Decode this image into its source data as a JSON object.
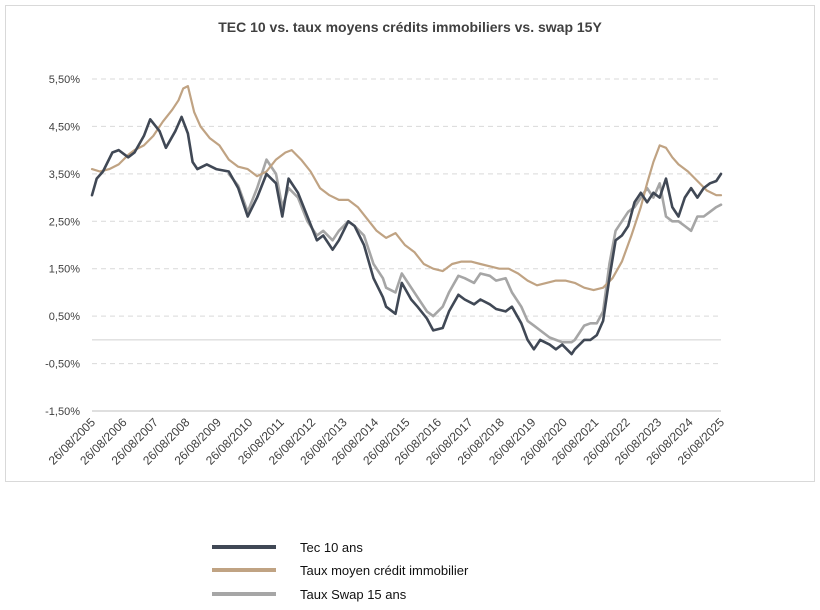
{
  "chart_data": {
    "type": "line",
    "title": "TEC 10 vs. taux moyens crédits immobiliers vs. swap 15Y",
    "xlabel": "",
    "ylabel": "",
    "ylim": [
      -1.5,
      5.5
    ],
    "yticks": [
      "5,50%",
      "4,50%",
      "3,50%",
      "2,50%",
      "1,50%",
      "0,50%",
      "-0,50%",
      "-1,50%"
    ],
    "ytick_values": [
      5.5,
      4.5,
      3.5,
      2.5,
      1.5,
      0.5,
      -0.5,
      -1.5
    ],
    "xlim": [
      2005.65,
      2025.65
    ],
    "xticks": [
      "26/08/2005",
      "26/08/2006",
      "26/08/2007",
      "26/08/2008",
      "26/08/2009",
      "26/08/2010",
      "26/08/2011",
      "26/08/2012",
      "26/08/2013",
      "26/08/2014",
      "26/08/2015",
      "26/08/2016",
      "26/08/2017",
      "26/08/2018",
      "26/08/2019",
      "26/08/2020",
      "26/08/2021",
      "26/08/2022",
      "26/08/2023",
      "26/08/2024",
      "26/08/2025"
    ],
    "grid": true,
    "legend_position": "bottom",
    "series": [
      {
        "name": "Tec 10 ans",
        "color": "#404855",
        "x": [
          2005.65,
          2005.8,
          2006.0,
          2006.3,
          2006.5,
          2006.8,
          2007.0,
          2007.3,
          2007.5,
          2007.8,
          2008.0,
          2008.3,
          2008.5,
          2008.7,
          2008.85,
          2009.0,
          2009.3,
          2009.6,
          2010.0,
          2010.3,
          2010.6,
          2010.9,
          2011.2,
          2011.5,
          2011.7,
          2011.9,
          2012.2,
          2012.5,
          2012.8,
          2013.0,
          2013.3,
          2013.5,
          2013.8,
          2014.0,
          2014.3,
          2014.6,
          2014.9,
          2015.0,
          2015.3,
          2015.5,
          2015.8,
          2016.0,
          2016.3,
          2016.5,
          2016.8,
          2017.0,
          2017.3,
          2017.5,
          2017.8,
          2018.0,
          2018.3,
          2018.5,
          2018.8,
          2019.0,
          2019.3,
          2019.5,
          2019.7,
          2019.9,
          2020.2,
          2020.4,
          2020.6,
          2020.9,
          2021.0,
          2021.3,
          2021.5,
          2021.7,
          2021.9,
          2022.1,
          2022.3,
          2022.5,
          2022.7,
          2022.9,
          2023.1,
          2023.3,
          2023.5,
          2023.7,
          2023.9,
          2024.1,
          2024.3,
          2024.5,
          2024.7,
          2024.9,
          2025.1,
          2025.3,
          2025.5,
          2025.65
        ],
        "values": [
          3.05,
          3.4,
          3.55,
          3.95,
          4.0,
          3.85,
          3.95,
          4.3,
          4.65,
          4.4,
          4.05,
          4.4,
          4.7,
          4.35,
          3.75,
          3.6,
          3.7,
          3.6,
          3.55,
          3.2,
          2.6,
          3.0,
          3.5,
          3.3,
          2.6,
          3.4,
          3.1,
          2.6,
          2.1,
          2.2,
          1.9,
          2.1,
          2.5,
          2.4,
          2.0,
          1.3,
          0.9,
          0.7,
          0.55,
          1.2,
          0.85,
          0.7,
          0.45,
          0.2,
          0.25,
          0.6,
          0.95,
          0.85,
          0.75,
          0.85,
          0.75,
          0.65,
          0.6,
          0.7,
          0.35,
          0.0,
          -0.2,
          0.0,
          -0.1,
          -0.2,
          -0.1,
          -0.3,
          -0.2,
          0.0,
          0.0,
          0.1,
          0.4,
          1.3,
          2.1,
          2.2,
          2.4,
          2.9,
          3.1,
          2.9,
          3.1,
          3.0,
          3.4,
          2.8,
          2.6,
          3.0,
          3.2,
          3.0,
          3.2,
          3.3,
          3.35,
          3.5
        ]
      },
      {
        "name": "Taux moyen crédit immobilier",
        "color": "#c0a383",
        "x": [
          2005.65,
          2005.9,
          2006.2,
          2006.5,
          2006.8,
          2007.0,
          2007.3,
          2007.6,
          2007.9,
          2008.2,
          2008.4,
          2008.55,
          2008.7,
          2008.9,
          2009.1,
          2009.4,
          2009.7,
          2010.0,
          2010.3,
          2010.6,
          2010.9,
          2011.2,
          2011.5,
          2011.8,
          2012.0,
          2012.3,
          2012.6,
          2012.9,
          2013.2,
          2013.5,
          2013.8,
          2014.1,
          2014.4,
          2014.7,
          2015.0,
          2015.3,
          2015.6,
          2015.9,
          2016.2,
          2016.5,
          2016.8,
          2017.1,
          2017.4,
          2017.7,
          2018.0,
          2018.3,
          2018.6,
          2018.9,
          2019.2,
          2019.5,
          2019.8,
          2020.1,
          2020.4,
          2020.7,
          2021.0,
          2021.3,
          2021.6,
          2021.9,
          2022.2,
          2022.5,
          2022.8,
          2023.1,
          2023.3,
          2023.5,
          2023.7,
          2023.9,
          2024.1,
          2024.3,
          2024.6,
          2024.9,
          2025.2,
          2025.5,
          2025.65
        ],
        "values": [
          3.6,
          3.55,
          3.6,
          3.7,
          3.9,
          4.0,
          4.1,
          4.3,
          4.6,
          4.85,
          5.05,
          5.3,
          5.35,
          4.8,
          4.5,
          4.25,
          4.1,
          3.8,
          3.65,
          3.6,
          3.45,
          3.55,
          3.8,
          3.95,
          4.0,
          3.8,
          3.55,
          3.2,
          3.05,
          2.95,
          2.95,
          2.8,
          2.55,
          2.3,
          2.15,
          2.25,
          2.0,
          1.85,
          1.6,
          1.5,
          1.45,
          1.6,
          1.65,
          1.65,
          1.6,
          1.55,
          1.5,
          1.5,
          1.4,
          1.25,
          1.15,
          1.2,
          1.25,
          1.25,
          1.2,
          1.1,
          1.05,
          1.1,
          1.3,
          1.65,
          2.2,
          2.8,
          3.3,
          3.75,
          4.1,
          4.05,
          3.85,
          3.7,
          3.55,
          3.35,
          3.15,
          3.05,
          3.05
        ]
      },
      {
        "name": "Taux Swap 15 ans",
        "color": "#a6a6a6",
        "x": [
          2010.0,
          2010.3,
          2010.6,
          2010.9,
          2011.2,
          2011.5,
          2011.7,
          2011.9,
          2012.2,
          2012.5,
          2012.8,
          2013.0,
          2013.3,
          2013.5,
          2013.8,
          2014.0,
          2014.3,
          2014.6,
          2014.9,
          2015.0,
          2015.3,
          2015.5,
          2015.8,
          2016.0,
          2016.3,
          2016.5,
          2016.8,
          2017.0,
          2017.3,
          2017.5,
          2017.8,
          2018.0,
          2018.3,
          2018.5,
          2018.8,
          2019.0,
          2019.3,
          2019.5,
          2019.7,
          2019.9,
          2020.2,
          2020.4,
          2020.6,
          2020.9,
          2021.0,
          2021.3,
          2021.5,
          2021.7,
          2021.9,
          2022.1,
          2022.3,
          2022.5,
          2022.7,
          2022.9,
          2023.1,
          2023.3,
          2023.5,
          2023.7,
          2023.9,
          2024.1,
          2024.3,
          2024.5,
          2024.7,
          2024.9,
          2025.1,
          2025.3,
          2025.5,
          2025.65
        ],
        "values": [
          3.5,
          3.25,
          2.7,
          3.2,
          3.8,
          3.5,
          2.8,
          3.2,
          3.0,
          2.5,
          2.2,
          2.3,
          2.1,
          2.3,
          2.5,
          2.4,
          2.2,
          1.6,
          1.3,
          1.1,
          1.0,
          1.4,
          1.1,
          0.9,
          0.6,
          0.5,
          0.7,
          1.0,
          1.35,
          1.3,
          1.2,
          1.4,
          1.35,
          1.25,
          1.3,
          1.0,
          0.7,
          0.4,
          0.3,
          0.2,
          0.05,
          0.0,
          -0.05,
          -0.05,
          0.0,
          0.3,
          0.35,
          0.35,
          0.6,
          1.6,
          2.3,
          2.5,
          2.7,
          2.8,
          3.0,
          3.2,
          3.0,
          3.3,
          2.6,
          2.5,
          2.5,
          2.4,
          2.3,
          2.6,
          2.6,
          2.7,
          2.8,
          2.85
        ]
      }
    ]
  }
}
